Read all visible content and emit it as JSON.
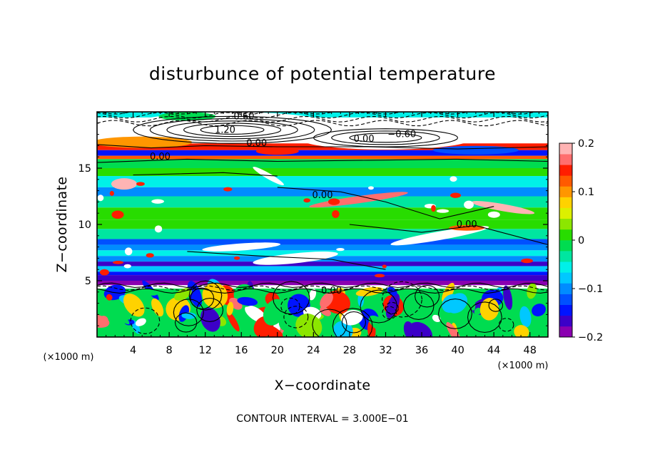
{
  "chart_data": {
    "type": "heatmap",
    "title": "disturbunce of potential temperature",
    "xlabel": "X−coordinate",
    "ylabel": "Z−coordinate",
    "x_unit": "(×1000 m)",
    "z_unit": "(×1000 m)",
    "xlim": [
      0,
      50
    ],
    "ylim": [
      0,
      20
    ],
    "x_ticks": [
      4,
      8,
      12,
      16,
      20,
      24,
      28,
      32,
      36,
      40,
      44,
      48
    ],
    "x_tick_labels": [
      "4",
      "8",
      "12",
      "16",
      "20",
      "24",
      "28",
      "32",
      "36",
      "40",
      "44",
      "48"
    ],
    "y_ticks": [
      5,
      10,
      15
    ],
    "y_tick_labels": [
      "5",
      "10",
      "15"
    ],
    "colorbar": {
      "range": [
        -0.2,
        0.2
      ],
      "ticks": [
        0.2,
        0.1,
        0,
        -0.1,
        -0.2
      ],
      "tick_labels": [
        "0.2",
        "0.1",
        "0",
        "−0.1",
        "−0.2"
      ],
      "colors": [
        "#8a00b0",
        "#3c00c8",
        "#0014ff",
        "#0050ff",
        "#008cff",
        "#00c8ff",
        "#00f0e8",
        "#00e6a0",
        "#00dc50",
        "#28dc00",
        "#8ce600",
        "#dcf000",
        "#ffd200",
        "#ff9600",
        "#ff5a00",
        "#ff1e00",
        "#ff6e6e",
        "#ffb4b4"
      ]
    },
    "z_bands": [
      {
        "z": [
          19.5,
          20
        ],
        "value": -0.05
      },
      {
        "z": [
          17.2,
          19.5
        ],
        "value": 0.25
      },
      {
        "z": [
          16.6,
          17.2
        ],
        "value": 0.15
      },
      {
        "z": [
          16.1,
          16.6
        ],
        "value": -0.15
      },
      {
        "z": [
          15.8,
          16.1
        ],
        "value": 0.12
      },
      {
        "z": [
          15.0,
          15.8
        ],
        "value": -0.02
      },
      {
        "z": [
          14.3,
          15.0
        ],
        "value": 0.0
      },
      {
        "z": [
          13.3,
          14.3
        ],
        "value": -0.06
      },
      {
        "z": [
          12.5,
          13.3
        ],
        "value": -0.09
      },
      {
        "z": [
          11.5,
          12.5
        ],
        "value": -0.03
      },
      {
        "z": [
          10.4,
          11.5
        ],
        "value": 0.02
      },
      {
        "z": [
          9.6,
          10.4
        ],
        "value": 0.0
      },
      {
        "z": [
          8.7,
          9.6
        ],
        "value": -0.04
      },
      {
        "z": [
          8.2,
          8.7
        ],
        "value": -0.12
      },
      {
        "z": [
          7.7,
          8.2
        ],
        "value": -0.09
      },
      {
        "z": [
          7.2,
          7.7
        ],
        "value": -0.06
      },
      {
        "z": [
          6.7,
          7.2
        ],
        "value": -0.1
      },
      {
        "z": [
          6.3,
          6.7
        ],
        "value": -0.16
      },
      {
        "z": [
          5.8,
          6.3
        ],
        "value": -0.08
      },
      {
        "z": [
          5.5,
          5.8
        ],
        "value": -0.14
      },
      {
        "z": [
          5.0,
          5.5
        ],
        "value": -0.17
      },
      {
        "z": [
          4.6,
          5.0
        ],
        "value": -0.2
      },
      {
        "z": [
          4.3,
          4.6
        ],
        "value": 0.25
      },
      {
        "z": [
          0,
          4.3
        ],
        "value": -0.02
      }
    ],
    "contour_labels": [
      {
        "text": "0.60",
        "x": 16.3,
        "z": 19.6
      },
      {
        "text": "1.20",
        "x": 14.2,
        "z": 18.4
      },
      {
        "text": "0.00",
        "x": 17.7,
        "z": 17.2
      },
      {
        "text": "0.00",
        "x": 29.6,
        "z": 17.6
      },
      {
        "text": "−0.60",
        "x": 33.8,
        "z": 18.0
      },
      {
        "text": "0.00",
        "x": 7.0,
        "z": 16.0
      },
      {
        "text": "0.00",
        "x": 25.0,
        "z": 12.6
      },
      {
        "text": "0.00",
        "x": 41.0,
        "z": 10.0
      },
      {
        "text": "0.00",
        "x": 26.0,
        "z": 4.1
      }
    ],
    "annotation": "CONTOUR INTERVAL = 3.000E−01"
  }
}
